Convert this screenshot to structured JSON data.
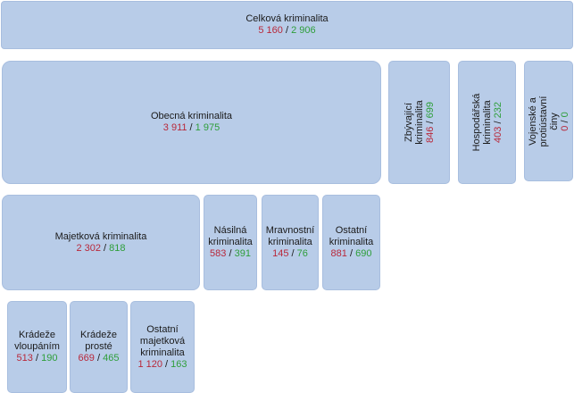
{
  "nodes": {
    "celkova": {
      "label": "Celková kriminalita",
      "red": "5 160",
      "sep": " / ",
      "green": "2 906"
    },
    "obecna": {
      "label": "Obecná kriminalita",
      "red": "3 911",
      "sep": " / ",
      "green": "1 975"
    },
    "zbyvajici": {
      "label": "Zbývající kriminalita",
      "red": "846",
      "sep": " / ",
      "green": "699"
    },
    "hospodarska": {
      "label": "Hospodářská kriminalita",
      "red": "403",
      "sep": " / ",
      "green": "232"
    },
    "vojenske": {
      "label": "Vojenské  a protiústavní\nčiny",
      "red": "0",
      "sep": " / ",
      "green": "0"
    },
    "majetkova": {
      "label": "Majetková kriminalita",
      "red": "2 302",
      "sep": " / ",
      "green": "818"
    },
    "nasilna": {
      "label": "Násilná\nkriminalita",
      "red": "583",
      "sep": " / ",
      "green": "391"
    },
    "mravnostni": {
      "label": "Mravnostní\nkriminalita",
      "red": "145",
      "sep": " / ",
      "green": "76"
    },
    "ostatni": {
      "label": "Ostatní\nkriminalita",
      "red": "881",
      "sep": " / ",
      "green": "690"
    },
    "kradeze_vloupanim": {
      "label": "Krádeže\nvloupáním",
      "red": "513",
      "sep": " / ",
      "green": "190"
    },
    "kradeze_proste": {
      "label": "Krádeže\nprosté",
      "red": "669",
      "sep": " / ",
      "green": "465"
    },
    "ostatni_majetkova": {
      "label": "Ostatní\nmajetková\nkriminalita",
      "red": "1 120",
      "sep": " / ",
      "green": "163"
    }
  },
  "colors": {
    "box_fill": "#b8cce8",
    "first_value": "#b8283a",
    "second_value": "#2e9e3a"
  }
}
